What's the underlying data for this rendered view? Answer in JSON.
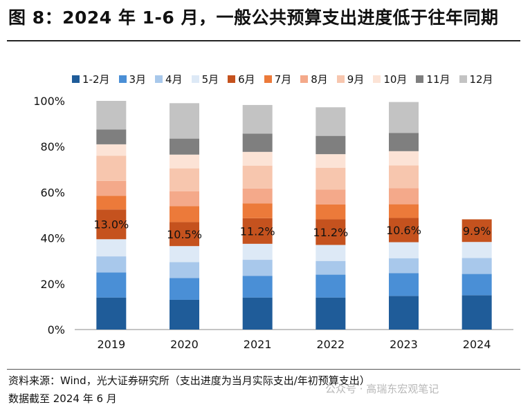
{
  "title": "图 8：2024 年 1-6 月，一般公共预算支出进度低于往年同期",
  "source": "资料来源：Wind，光大证券研究所（支出进度为当月实际支出/年初预算支出）",
  "note": "数据截至 2024 年 6 月",
  "watermark": "公众号 · 高瑞东宏观笔记",
  "chart_data": {
    "type": "bar",
    "stacked": true,
    "categories": [
      "2019",
      "2020",
      "2021",
      "2022",
      "2023",
      "2024"
    ],
    "ylim": [
      0,
      100
    ],
    "yticks": [
      "0%",
      "20%",
      "40%",
      "60%",
      "80%",
      "100%"
    ],
    "series": [
      {
        "name": "1-2月",
        "color": "#1f5c99",
        "values": [
          14.0,
          13.0,
          14.0,
          14.0,
          14.7,
          15.0
        ]
      },
      {
        "name": "3月",
        "color": "#4a8fd6",
        "values": [
          11.0,
          9.5,
          9.5,
          10.0,
          10.0,
          9.3
        ]
      },
      {
        "name": "4月",
        "color": "#a8c8eb",
        "values": [
          7.0,
          7.0,
          7.0,
          6.0,
          6.5,
          7.0
        ]
      },
      {
        "name": "5月",
        "color": "#dde9f6",
        "values": [
          7.5,
          7.0,
          7.0,
          7.0,
          7.0,
          7.0
        ]
      },
      {
        "name": "6月",
        "color": "#c5521e",
        "values": [
          13.0,
          10.5,
          11.2,
          11.2,
          10.6,
          9.9
        ]
      },
      {
        "name": "7月",
        "color": "#ec7a3a",
        "values": [
          6.0,
          7.0,
          6.5,
          6.5,
          6.0,
          0
        ]
      },
      {
        "name": "8月",
        "color": "#f4a98a",
        "values": [
          6.5,
          6.5,
          6.5,
          6.5,
          7.0,
          0
        ]
      },
      {
        "name": "9月",
        "color": "#f7c6ae",
        "values": [
          11.0,
          10.0,
          10.0,
          9.5,
          10.0,
          0
        ]
      },
      {
        "name": "10月",
        "color": "#fce3d6",
        "values": [
          5.0,
          6.0,
          6.0,
          6.0,
          6.2,
          0
        ]
      },
      {
        "name": "11月",
        "color": "#7f7f7f",
        "values": [
          6.5,
          7.0,
          8.0,
          8.0,
          8.0,
          0
        ]
      },
      {
        "name": "12月",
        "color": "#c3c3c3",
        "values": [
          12.5,
          15.5,
          12.5,
          12.5,
          13.5,
          0
        ]
      }
    ],
    "data_labels": [
      "13.0%",
      "10.5%",
      "11.2%",
      "11.2%",
      "10.6%",
      "9.9%"
    ],
    "legend_position": "top",
    "grid": false
  }
}
